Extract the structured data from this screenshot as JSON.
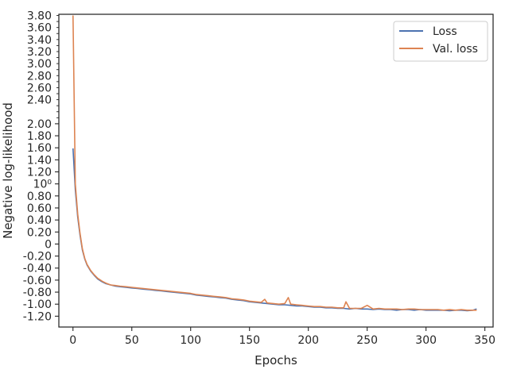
{
  "chart_data": {
    "type": "line",
    "xlabel": "Epochs",
    "ylabel": "Negative log-likelihood",
    "xlim": [
      -12,
      357
    ],
    "ylim": [
      -1.38,
      3.82
    ],
    "x_ticks": [
      0,
      50,
      100,
      150,
      200,
      250,
      300,
      350
    ],
    "y_ticks": [
      {
        "value": -1.2,
        "label": "-1.20"
      },
      {
        "value": -1.0,
        "label": "-1.00"
      },
      {
        "value": -0.8,
        "label": "-0.80"
      },
      {
        "value": -0.6,
        "label": "-0.60"
      },
      {
        "value": -0.4,
        "label": "-0.40"
      },
      {
        "value": -0.2,
        "label": "-0.20"
      },
      {
        "value": 0.0,
        "label": "0"
      },
      {
        "value": 0.2,
        "label": "0.20"
      },
      {
        "value": 0.4,
        "label": "0.40"
      },
      {
        "value": 0.6,
        "label": "0.60"
      },
      {
        "value": 0.8,
        "label": "0.80"
      },
      {
        "value": 1.0,
        "label": "10⁰"
      },
      {
        "value": 1.2,
        "label": "1.20"
      },
      {
        "value": 1.4,
        "label": "1.40"
      },
      {
        "value": 1.6,
        "label": "1.60"
      },
      {
        "value": 1.8,
        "label": "1.80"
      },
      {
        "value": 2.0,
        "label": "2.00"
      }
    ],
    "y_minor_ticks": [
      2.1,
      2.2,
      2.3,
      2.4,
      2.5,
      2.6,
      2.7,
      2.8,
      2.9,
      3.0,
      3.1,
      3.2,
      3.3,
      3.4,
      3.5,
      3.6,
      3.7,
      3.8
    ],
    "y_compressed_labels": [
      {
        "value": 2.4,
        "label": "2.40"
      },
      {
        "value": 2.6,
        "label": "2.60"
      },
      {
        "value": 2.8,
        "label": "2.80"
      },
      {
        "value": 3.0,
        "label": "3.00"
      },
      {
        "value": 3.2,
        "label": "3.20"
      },
      {
        "value": 3.4,
        "label": "3.40"
      },
      {
        "value": 3.6,
        "label": "3.60"
      },
      {
        "value": 3.8,
        "label": "3.80"
      }
    ],
    "grid": false,
    "legend_position": "top-right",
    "series": [
      {
        "name": "Loss",
        "color": "#4c72b0",
        "x": [
          0,
          2,
          4,
          6,
          8,
          10,
          12,
          15,
          18,
          21,
          25,
          28,
          32,
          36,
          40,
          45,
          50,
          55,
          60,
          65,
          70,
          75,
          80,
          85,
          90,
          95,
          100,
          105,
          110,
          115,
          120,
          125,
          130,
          135,
          140,
          145,
          150,
          155,
          160,
          165,
          170,
          175,
          180,
          185,
          190,
          195,
          200,
          205,
          210,
          215,
          220,
          225,
          230,
          235,
          240,
          245,
          250,
          255,
          260,
          265,
          270,
          275,
          280,
          285,
          290,
          295,
          300,
          305,
          310,
          315,
          320,
          325,
          330,
          335,
          340,
          343
        ],
        "y": [
          1.59,
          0.9,
          0.45,
          0.15,
          -0.1,
          -0.25,
          -0.35,
          -0.45,
          -0.52,
          -0.58,
          -0.63,
          -0.66,
          -0.68,
          -0.7,
          -0.71,
          -0.72,
          -0.73,
          -0.74,
          -0.75,
          -0.76,
          -0.77,
          -0.78,
          -0.79,
          -0.8,
          -0.81,
          -0.82,
          -0.83,
          -0.85,
          -0.86,
          -0.87,
          -0.88,
          -0.89,
          -0.9,
          -0.92,
          -0.93,
          -0.94,
          -0.96,
          -0.97,
          -0.98,
          -0.99,
          -1.0,
          -1.01,
          -1.01,
          -1.02,
          -1.03,
          -1.03,
          -1.04,
          -1.05,
          -1.05,
          -1.06,
          -1.06,
          -1.07,
          -1.07,
          -1.08,
          -1.07,
          -1.08,
          -1.08,
          -1.09,
          -1.08,
          -1.09,
          -1.09,
          -1.1,
          -1.09,
          -1.09,
          -1.1,
          -1.09,
          -1.1,
          -1.1,
          -1.1,
          -1.1,
          -1.11,
          -1.1,
          -1.1,
          -1.11,
          -1.1,
          -1.08
        ]
      },
      {
        "name": "Val. loss",
        "color": "#dd8452",
        "x": [
          0,
          2,
          4,
          6,
          8,
          10,
          12,
          15,
          18,
          21,
          25,
          28,
          32,
          36,
          40,
          45,
          50,
          55,
          60,
          65,
          70,
          75,
          80,
          85,
          90,
          95,
          100,
          105,
          110,
          115,
          120,
          125,
          130,
          135,
          140,
          145,
          150,
          155,
          160,
          163,
          165,
          170,
          175,
          180,
          183,
          185,
          190,
          195,
          200,
          205,
          210,
          215,
          220,
          225,
          230,
          232,
          235,
          240,
          245,
          250,
          255,
          260,
          265,
          270,
          275,
          280,
          285,
          290,
          295,
          300,
          305,
          310,
          315,
          320,
          325,
          330,
          335,
          340,
          343
        ],
        "y": [
          3.8,
          1.0,
          0.5,
          0.18,
          -0.08,
          -0.24,
          -0.34,
          -0.44,
          -0.51,
          -0.57,
          -0.62,
          -0.65,
          -0.68,
          -0.69,
          -0.7,
          -0.71,
          -0.72,
          -0.73,
          -0.74,
          -0.75,
          -0.76,
          -0.77,
          -0.78,
          -0.79,
          -0.8,
          -0.81,
          -0.82,
          -0.84,
          -0.85,
          -0.86,
          -0.87,
          -0.88,
          -0.89,
          -0.91,
          -0.92,
          -0.93,
          -0.95,
          -0.96,
          -0.97,
          -0.92,
          -0.98,
          -0.99,
          -1.0,
          -0.99,
          -0.89,
          -1.0,
          -1.01,
          -1.02,
          -1.03,
          -1.04,
          -1.04,
          -1.05,
          -1.05,
          -1.06,
          -1.06,
          -0.96,
          -1.07,
          -1.07,
          -1.07,
          -1.02,
          -1.08,
          -1.07,
          -1.08,
          -1.08,
          -1.08,
          -1.09,
          -1.08,
          -1.08,
          -1.09,
          -1.09,
          -1.09,
          -1.09,
          -1.1,
          -1.09,
          -1.1,
          -1.09,
          -1.1,
          -1.1,
          -1.1
        ]
      }
    ]
  }
}
